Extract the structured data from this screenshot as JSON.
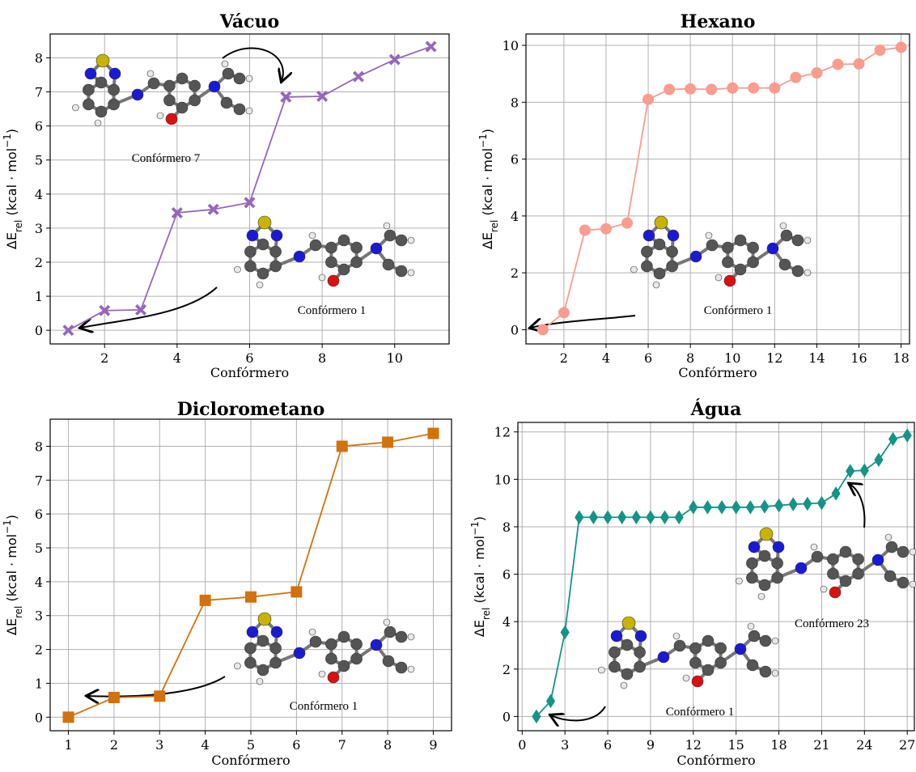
{
  "chart_data": [
    {
      "type": "line",
      "title": "Vácuo",
      "xlabel": "Confórmero",
      "ylabel": [
        "ΔE",
        "rel",
        " (kcal · mol",
        "−1",
        ")"
      ],
      "x": [
        1,
        2,
        3,
        4,
        5,
        6,
        7,
        8,
        9,
        10,
        11
      ],
      "series": [
        {
          "color": "#9467bd",
          "marker": "x",
          "values": [
            0,
            0.58,
            0.6,
            3.45,
            3.55,
            3.75,
            6.85,
            6.87,
            7.45,
            7.95,
            8.33
          ]
        }
      ],
      "xlim": [
        0.5,
        11.5
      ],
      "xticks": [
        2,
        4,
        6,
        8,
        10
      ],
      "ylim": [
        -0.4,
        8.7
      ],
      "yticks": [
        0,
        1,
        2,
        3,
        4,
        5,
        6,
        7,
        8
      ],
      "grid": true,
      "annotations": [
        "Confórmero 7",
        "Confórmero 1"
      ]
    },
    {
      "type": "line",
      "title": "Hexano",
      "xlabel": "Confórmero",
      "ylabel": [
        "ΔE",
        "rel",
        " (kcal · mol",
        "−1",
        ")"
      ],
      "x": [
        1,
        2,
        3,
        4,
        5,
        6,
        7,
        8,
        9,
        10,
        11,
        12,
        13,
        14,
        15,
        16,
        17,
        18
      ],
      "series": [
        {
          "color": "#fa9c8f",
          "marker": "circle",
          "values": [
            0,
            0.6,
            3.5,
            3.55,
            3.75,
            8.1,
            8.45,
            8.47,
            8.45,
            8.5,
            8.5,
            8.5,
            8.87,
            9.03,
            9.33,
            9.35,
            9.83,
            9.93
          ]
        }
      ],
      "xlim": [
        0.2,
        18.4
      ],
      "xticks": [
        2,
        4,
        6,
        8,
        10,
        12,
        14,
        16,
        18
      ],
      "ylim": [
        -0.5,
        10.4
      ],
      "yticks": [
        0,
        2,
        4,
        6,
        8,
        10
      ],
      "grid": true,
      "annotations": [
        "Confórmero 1"
      ]
    },
    {
      "type": "line",
      "title": "Diclorometano",
      "xlabel": "Confórmero",
      "ylabel": [
        "ΔE",
        "rel",
        " (kcal · mol",
        "−1",
        ")"
      ],
      "x": [
        1,
        2,
        3,
        4,
        5,
        6,
        7,
        8,
        9
      ],
      "series": [
        {
          "color": "#d2720d",
          "marker": "square",
          "values": [
            0,
            0.58,
            0.62,
            3.45,
            3.55,
            3.7,
            8.0,
            8.12,
            8.38
          ]
        }
      ],
      "xlim": [
        0.6,
        9.4
      ],
      "xticks": [
        1,
        2,
        3,
        4,
        5,
        6,
        7,
        8,
        9
      ],
      "ylim": [
        -0.4,
        8.8
      ],
      "yticks": [
        0,
        1,
        2,
        3,
        4,
        5,
        6,
        7,
        8
      ],
      "grid": true,
      "annotations": [
        "Confórmero 1"
      ]
    },
    {
      "type": "line",
      "title": "Água",
      "xlabel": "Confórmero",
      "ylabel": [
        "ΔE",
        "rel",
        " (kcal · mol",
        "−1",
        ")"
      ],
      "x": [
        1,
        2,
        3,
        4,
        5,
        6,
        7,
        8,
        9,
        10,
        11,
        12,
        13,
        14,
        15,
        16,
        17,
        18,
        19,
        20,
        21,
        22,
        23,
        24,
        25,
        26,
        27
      ],
      "series": [
        {
          "color": "#139486",
          "marker": "diamond",
          "values": [
            0,
            0.65,
            3.55,
            8.4,
            8.4,
            8.4,
            8.4,
            8.4,
            8.4,
            8.4,
            8.4,
            8.82,
            8.82,
            8.82,
            8.82,
            8.82,
            8.85,
            8.9,
            8.95,
            8.97,
            9.0,
            9.4,
            10.35,
            10.38,
            10.82,
            11.7,
            11.85
          ]
        }
      ],
      "xlim": [
        -0.3,
        27.5
      ],
      "xticks": [
        0,
        3,
        6,
        9,
        12,
        15,
        18,
        21,
        24,
        27
      ],
      "ylim": [
        -0.6,
        12.4
      ],
      "yticks": [
        0,
        2,
        4,
        6,
        8,
        10,
        12
      ],
      "grid": true,
      "annotations": [
        "Confórmero 1",
        "Confórmero 23"
      ]
    }
  ]
}
